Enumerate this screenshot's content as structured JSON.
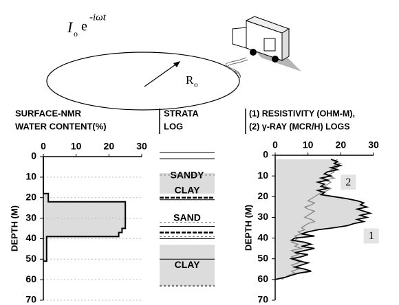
{
  "diagram": {
    "current_symbol": "I",
    "current_sub": "o",
    "exponent_base": "e",
    "exponent": "-iωt",
    "radius_symbol": "R",
    "radius_sub": "o"
  },
  "strata_log": {
    "title": [
      "STRATA",
      "LOG"
    ],
    "boundaries": [
      -2,
      1,
      9,
      20,
      21,
      32,
      34,
      37,
      39,
      40,
      50,
      63
    ],
    "layers": [
      {
        "label": [
          "SANDY",
          "CLAY"
        ],
        "top": 8,
        "bottom": 18,
        "shaded": true
      },
      {
        "label": [
          "SAND"
        ],
        "top": 21,
        "bottom": 39,
        "shaded": false
      },
      {
        "label": [
          "CLAY"
        ],
        "top": 43,
        "bottom": 63,
        "shaded": true
      }
    ]
  },
  "chart_data": [
    {
      "type": "step-profile",
      "title": [
        "SURFACE-NMR",
        "WATER CONTENT(%)"
      ],
      "y_label": "DEPTH (M)",
      "xlim": [
        0,
        30
      ],
      "xticks": [
        0,
        10,
        20,
        30
      ],
      "ylim": [
        0,
        70
      ],
      "yticks": [
        0,
        10,
        20,
        30,
        40,
        50,
        60,
        70
      ],
      "depth": [
        0,
        18,
        18,
        22,
        22,
        35,
        35,
        37,
        37,
        39,
        39,
        51,
        51
      ],
      "values": [
        0,
        0,
        1.5,
        1.5,
        25,
        25,
        24,
        24,
        23,
        23,
        1,
        1,
        0
      ],
      "color": "#000000",
      "fill": "#dcdcdc"
    },
    {
      "type": "line",
      "title": [
        "(1) RESISTIVITY (OHM-M),",
        "(2) γ-RAY (MCR/H) LOGS"
      ],
      "y_label": "DEPTH (M)",
      "xlim": [
        0,
        30
      ],
      "xticks": [
        0,
        10,
        20,
        30
      ],
      "ylim": [
        0,
        70
      ],
      "yticks": [
        0,
        10,
        20,
        30,
        40,
        50,
        60,
        70
      ],
      "depth": [
        2,
        3,
        4,
        5,
        6,
        7,
        8,
        9,
        10,
        11,
        12,
        13,
        14,
        15,
        16,
        17,
        18,
        19,
        20,
        21,
        22,
        23,
        24,
        25,
        26,
        27,
        28,
        29,
        30,
        31,
        32,
        33,
        34,
        35,
        36,
        37,
        38,
        39,
        40,
        41,
        42,
        43,
        44,
        45,
        46,
        47,
        48,
        49,
        50,
        51,
        52,
        53,
        54,
        55,
        56,
        57,
        58,
        59,
        60
      ],
      "fill": "#dcdcdc",
      "series": [
        {
          "name": "1",
          "color": "#000000",
          "values": [
            17,
            19,
            18,
            20,
            17,
            19,
            16,
            15,
            17,
            14,
            16,
            13,
            15,
            14,
            16,
            13,
            15,
            14,
            18,
            22,
            25,
            27,
            26,
            28,
            25,
            27,
            29,
            26,
            28,
            25,
            27,
            24,
            22,
            18,
            13,
            10,
            8,
            12,
            6,
            5,
            9,
            11,
            8,
            12,
            9,
            6,
            10,
            8,
            5,
            7,
            10,
            8,
            6,
            9,
            11,
            7,
            5,
            3,
            0
          ]
        },
        {
          "name": "2",
          "color": "#8c8c8c",
          "values": [
            19,
            18,
            20,
            18,
            19,
            17,
            18,
            17,
            16,
            18,
            15,
            17,
            16,
            15,
            17,
            16,
            14,
            13,
            12,
            11,
            10,
            12,
            11,
            9,
            10,
            12,
            11,
            10,
            9,
            11,
            12,
            10,
            9,
            8,
            9,
            7,
            8,
            6,
            7,
            6,
            5,
            7,
            6,
            8,
            5,
            6,
            7,
            5,
            6,
            8,
            7,
            5,
            6,
            7,
            5,
            6,
            4,
            3,
            2
          ]
        }
      ]
    }
  ]
}
